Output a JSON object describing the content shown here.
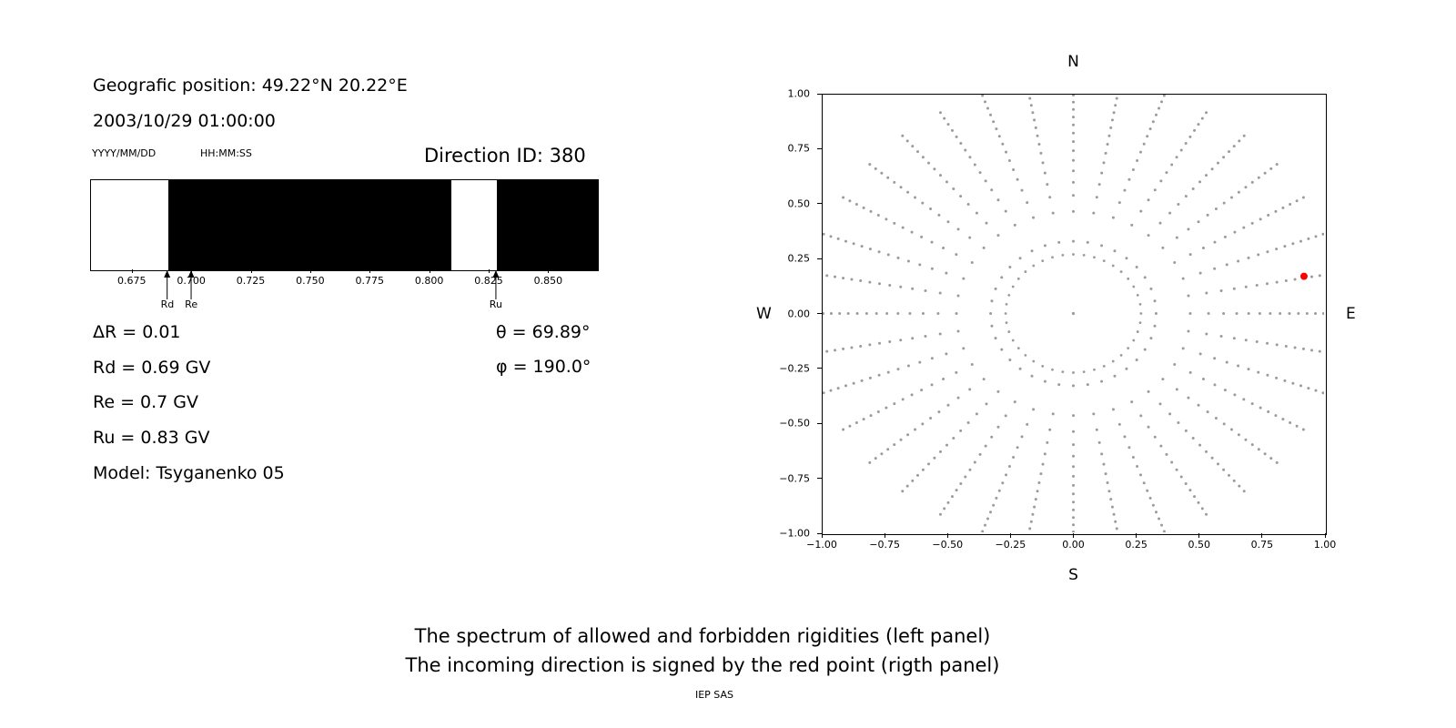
{
  "info_panel": {
    "geo_position": "Geografic position: 49.22°N 20.22°E",
    "datetime": "2003/10/29 01:00:00",
    "date_format_hint": "YYYY/MM/DD",
    "time_format_hint": "HH:MM:SS",
    "direction_id": "Direction ID: 380",
    "delta_r": "ΔR = 0.01",
    "rd": "Rd = 0.69 GV",
    "re": "Re = 0.7 GV",
    "ru": "Ru = 0.83 GV",
    "model": "Model: Tsyganenko 05",
    "theta": "θ = 69.89°",
    "phi": "φ = 190.0°"
  },
  "captions": {
    "line1": "The spectrum of allowed and forbidden rigidities (left panel)",
    "line2": "The incoming direction is signed by the red point (rigth panel)",
    "credit": "IEP SAS"
  },
  "chart_data": [
    {
      "id": "rigidity_spectrum",
      "type": "bar",
      "description": "Spectrum of allowed (white) and forbidden (black) rigidity bands",
      "x_min": 0.6575,
      "x_max": 0.8705,
      "tick_values": [
        0.675,
        0.7,
        0.725,
        0.75,
        0.775,
        0.8,
        0.825,
        0.85
      ],
      "tick_labels": [
        "0.675",
        "0.700",
        "0.725",
        "0.750",
        "0.775",
        "0.800",
        "0.825",
        "0.850"
      ],
      "black_segments": [
        [
          0.69,
          0.809
        ],
        [
          0.828,
          0.8705
        ]
      ],
      "bar_color": "#000000",
      "background": "#ffffff",
      "markers": [
        {
          "label": "Rd",
          "x": 0.69
        },
        {
          "label": "Re",
          "x": 0.7
        },
        {
          "label": "Ru",
          "x": 0.828
        }
      ],
      "values": {
        "delta_R_GV": 0.01,
        "Rd_GV": 0.69,
        "Re_GV": 0.7,
        "Ru_GV": 0.83,
        "model": "Tsyganenko 05"
      }
    },
    {
      "id": "direction_map",
      "type": "scatter",
      "description": "Incoming direction map; gray dot spokes radiate from center, red point marks incoming direction",
      "xlim": [
        -1.0,
        1.0
      ],
      "ylim": [
        -1.0,
        1.0
      ],
      "x_tick_labels": [
        "−1.00",
        "−0.75",
        "−0.50",
        "−0.25",
        "0.00",
        "0.25",
        "0.50",
        "0.75",
        "1.00"
      ],
      "y_tick_labels": [
        "1.00",
        "0.75",
        "0.50",
        "0.25",
        "0.00",
        "−0.25",
        "−0.50",
        "−0.75",
        "−1.00"
      ],
      "compass": {
        "north": "N",
        "south": "S",
        "east": "E",
        "west": "W"
      },
      "dot_color": "#9b9b9b",
      "pattern": {
        "center_dot": true,
        "ring_radius": 0.27,
        "ring_dot_count": 40,
        "spoke_count": 36,
        "spoke_angle_step_deg": 10,
        "spoke_r_start": 0.33,
        "spoke_r_end": 1.06,
        "dots_per_spoke": 16,
        "tip_cluster_exponent": 0.62
      },
      "red_point": {
        "x": 0.92,
        "y": 0.17,
        "color": "#ff0000",
        "theta_deg": 69.89,
        "phi_deg": 190.0
      }
    }
  ]
}
